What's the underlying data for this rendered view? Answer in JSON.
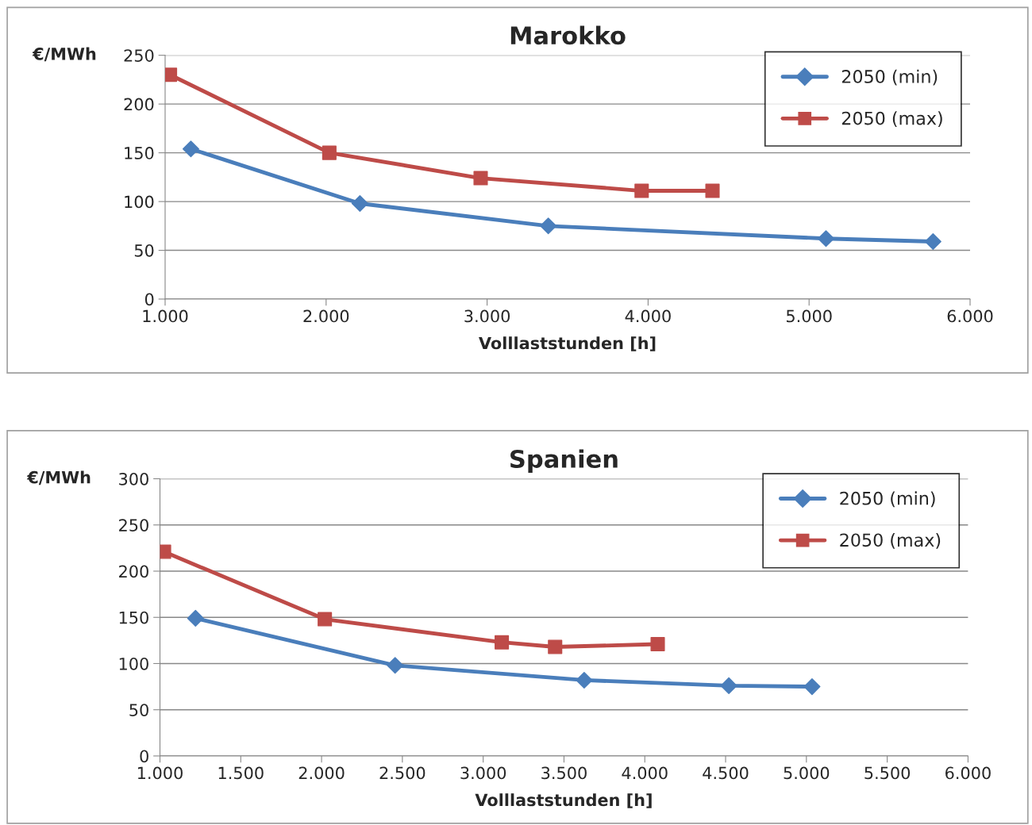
{
  "chart_data": [
    {
      "type": "line",
      "title": "Marokko",
      "xlabel": "Volllaststunden [h]",
      "ylabel": "€/MWh",
      "series": [
        {
          "name": "2050 (min)",
          "color": "#4a7ebb",
          "marker": "diamond",
          "x": [
            1160,
            2210,
            3380,
            5105,
            5770
          ],
          "values": [
            154,
            98,
            75,
            62,
            59
          ]
        },
        {
          "name": "2050 (max)",
          "color": "#be4b48",
          "marker": "square",
          "x": [
            1030,
            2020,
            2960,
            3960,
            4400
          ],
          "values": [
            230,
            150,
            124,
            111,
            111
          ]
        }
      ],
      "xlim": [
        1000,
        6000
      ],
      "xticks": [
        {
          "value": 1000,
          "label": "1.000"
        },
        {
          "value": 2000,
          "label": "2.000"
        },
        {
          "value": 3000,
          "label": "3.000"
        },
        {
          "value": 4000,
          "label": "4.000"
        },
        {
          "value": 5000,
          "label": "5.000"
        },
        {
          "value": 6000,
          "label": "6.000"
        }
      ],
      "ylim": [
        0,
        250
      ],
      "yticks": [
        0,
        50,
        100,
        150,
        200,
        250
      ],
      "grid": "y",
      "legend": "top right",
      "line_style": "solid"
    },
    {
      "type": "line",
      "title": "Spanien",
      "xlabel": "Volllaststunden [h]",
      "ylabel": "€/MWh",
      "series": [
        {
          "name": "2050 (min)",
          "color": "#4a7ebb",
          "marker": "diamond",
          "x": [
            1220,
            2455,
            3625,
            4520,
            5035
          ],
          "values": [
            149,
            98,
            82,
            76,
            75
          ]
        },
        {
          "name": "2050 (max)",
          "color": "#be4b48",
          "marker": "square",
          "x": [
            1025,
            2020,
            3115,
            3445,
            4080
          ],
          "values": [
            221,
            148,
            123,
            118,
            121
          ]
        }
      ],
      "xlim": [
        1000,
        6000
      ],
      "xticks": [
        {
          "value": 1000,
          "label": "1.000"
        },
        {
          "value": 1500,
          "label": "1.500"
        },
        {
          "value": 2000,
          "label": "2.000"
        },
        {
          "value": 2500,
          "label": "2.500"
        },
        {
          "value": 3000,
          "label": "3.000"
        },
        {
          "value": 3500,
          "label": "3.500"
        },
        {
          "value": 4000,
          "label": "4.000"
        },
        {
          "value": 4500,
          "label": "4.500"
        },
        {
          "value": 5000,
          "label": "5.000"
        },
        {
          "value": 5500,
          "label": "5.500"
        },
        {
          "value": 6000,
          "label": "6.000"
        }
      ],
      "ylim": [
        0,
        300
      ],
      "yticks": [
        0,
        50,
        100,
        150,
        200,
        250,
        300
      ],
      "grid": "y",
      "legend": "top right",
      "line_style": "solid"
    }
  ]
}
